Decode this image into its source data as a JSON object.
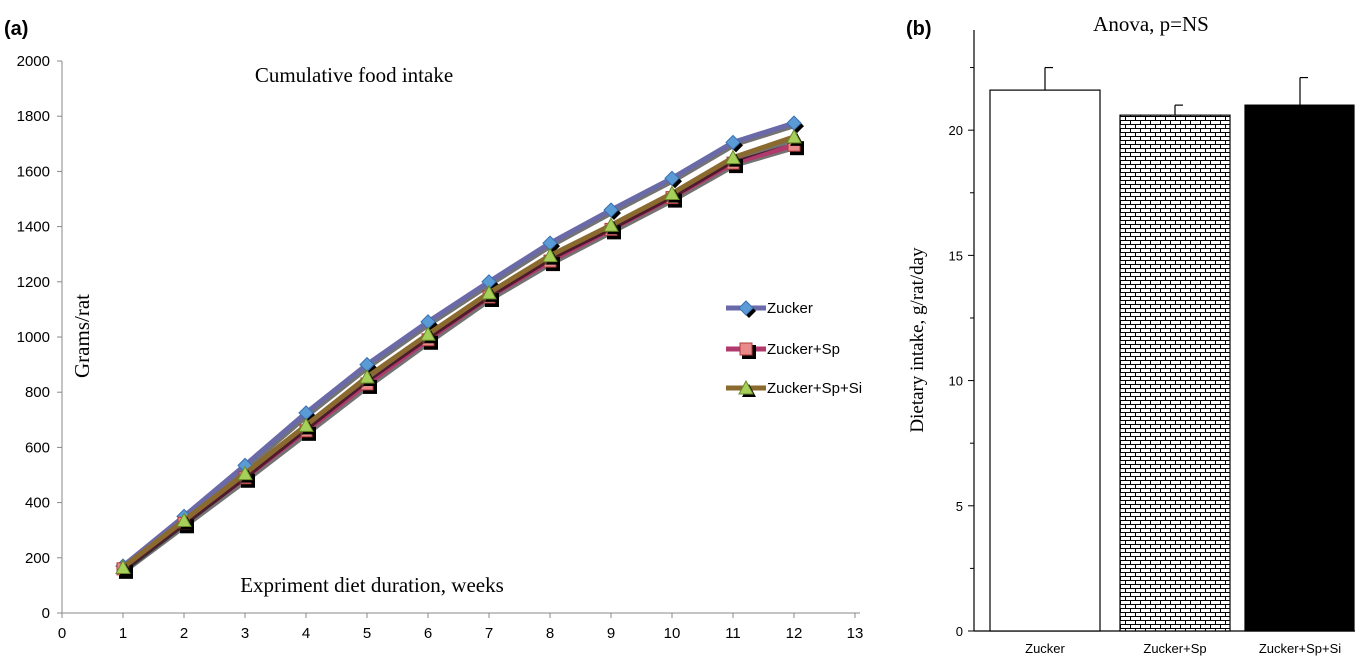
{
  "chart_data": [
    {
      "panel": "(a)",
      "type": "line",
      "title": "Cumulative food intake",
      "xlabel": "Expriment diet duration, weeks",
      "ylabel": "Grams/rat",
      "xlim": [
        0,
        13
      ],
      "ylim": [
        0,
        2000
      ],
      "xticks": [
        "0",
        "1",
        "2",
        "3",
        "4",
        "5",
        "6",
        "7",
        "8",
        "9",
        "10",
        "11",
        "12",
        "13"
      ],
      "yticks": [
        "0",
        "200",
        "400",
        "600",
        "800",
        "1000",
        "1200",
        "1400",
        "1600",
        "1800",
        "2000"
      ],
      "grid": false,
      "legend_position": "right",
      "x": [
        1,
        2,
        3,
        4,
        5,
        6,
        7,
        8,
        9,
        10,
        11,
        12
      ],
      "series": [
        {
          "name": "Zucker",
          "values": [
            170,
            350,
            535,
            725,
            900,
            1055,
            1200,
            1340,
            1460,
            1575,
            1705,
            1775
          ],
          "color": "#6b6aa8",
          "marker": "diamond",
          "marker_color": "#5b9bd5"
        },
        {
          "name": "Zucker+Sp",
          "values": [
            160,
            325,
            490,
            660,
            830,
            990,
            1145,
            1275,
            1390,
            1505,
            1630,
            1695
          ],
          "color": "#b03a6b",
          "marker": "square",
          "marker_color": "#e98a8a"
        },
        {
          "name": "Zucker+Sp+Si",
          "values": [
            165,
            335,
            505,
            680,
            855,
            1010,
            1160,
            1295,
            1405,
            1520,
            1650,
            1725
          ],
          "color": "#8a6a2e",
          "marker": "triangle",
          "marker_color": "#a6d05a"
        }
      ]
    },
    {
      "panel": "(b)",
      "type": "bar",
      "title": "Anova, p=NS",
      "xlabel": "",
      "ylabel": "Dietary intake, g/rat/day",
      "ylim": [
        0,
        24
      ],
      "yticks": [
        "0",
        "5",
        "10",
        "15",
        "20"
      ],
      "categories": [
        "Zucker",
        "Zucker+Sp",
        "Zucker+Sp+Si"
      ],
      "values": [
        21.6,
        20.6,
        21.0
      ],
      "errors": [
        0.9,
        0.4,
        1.1
      ],
      "fills": [
        "white",
        "brick",
        "black"
      ]
    }
  ]
}
